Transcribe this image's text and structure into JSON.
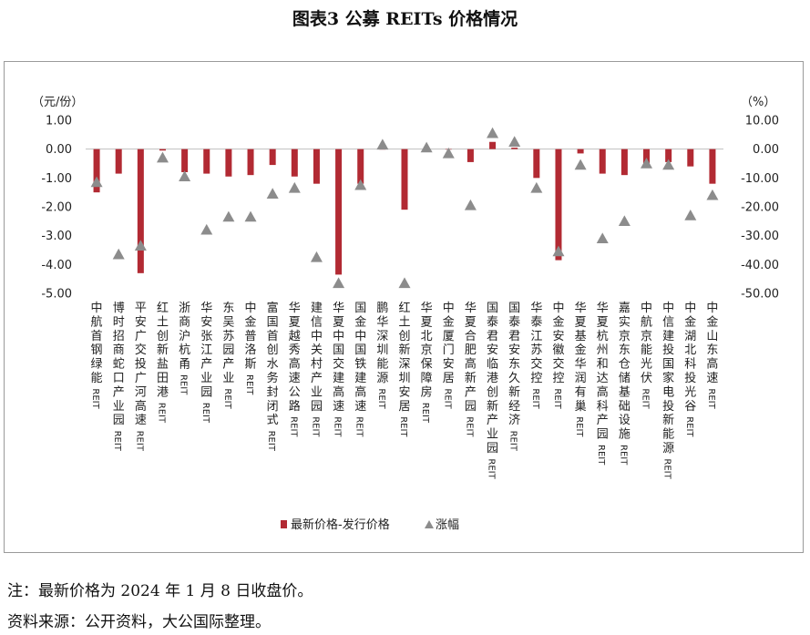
{
  "title": "图表3 公募 REITs 价格情况",
  "chart_data": {
    "type": "bar",
    "title": "图表3 公募 REITs 价格情况",
    "left_unit": "（元/份）",
    "right_unit": "（%）",
    "left_ylim": [
      -5,
      1
    ],
    "right_ylim": [
      -50,
      10
    ],
    "left_ticks": [
      "1.00",
      "0.00",
      "-1.00",
      "-2.00",
      "-3.00",
      "-4.00",
      "-5.00"
    ],
    "right_ticks": [
      "10.00",
      "0.00",
      "-10.00",
      "-20.00",
      "-30.00",
      "-40.00",
      "-50.00"
    ],
    "grid": false,
    "legend_position": "bottom-center",
    "categories": [
      "中航首钢绿能REIT",
      "博时招商蛇口产业园REIT",
      "平安广交投广河高速REIT",
      "红土创新盐田港REIT",
      "浙商沪杭甬REIT",
      "华安张江产业园REIT",
      "东吴苏园产业REIT",
      "中金普洛斯REIT",
      "富国首创水务封闭式REIT",
      "华夏越秀高速公路REIT",
      "建信中关村产业园REIT",
      "华夏中国交建高速REIT",
      "国金中国铁建高速REIT",
      "鹏华深圳能源REIT",
      "红土创新深圳安居REIT",
      "华夏北京保障房REIT",
      "中金厦门安居REIT",
      "华夏合肥高新产园REIT",
      "国泰君安临港创新产业园REIT",
      "国泰君安东久新经济REIT",
      "华泰江苏交控REIT",
      "中金安徽交控REIT",
      "华夏基金华润有巢REIT",
      "华夏杭州和达高科产园REIT",
      "嘉实京东仓储基础设施REIT",
      "中航京能光伏REIT",
      "中信建投国家电投新能源REIT",
      "中金湖北科投光谷REIT",
      "中金山东高速REIT"
    ],
    "series": [
      {
        "name": "最新价格-发行价格",
        "type": "bar",
        "axis": "left",
        "color": "#b22a33",
        "values": [
          -1.5,
          -0.85,
          -4.3,
          -0.05,
          -0.8,
          -0.85,
          -0.95,
          -0.9,
          -0.55,
          -0.95,
          -1.2,
          -4.35,
          -1.2,
          0.0,
          -2.1,
          0.0,
          0.0,
          -0.45,
          0.25,
          0.05,
          -1.0,
          -3.85,
          -0.15,
          -0.85,
          -0.9,
          -0.5,
          -0.45,
          -0.6,
          -1.2
        ]
      },
      {
        "name": "涨幅",
        "type": "scatter",
        "axis": "right",
        "marker": "triangle",
        "color": "#8c8c8c",
        "values": [
          -11.5,
          -36.5,
          -33.5,
          -3,
          -9.5,
          -28,
          -23.5,
          -23.5,
          -15.5,
          -13.5,
          -37.5,
          -46.5,
          -12.5,
          1.5,
          -46.5,
          0.5,
          -1.5,
          -19.5,
          5.5,
          2.5,
          -13.5,
          -35.5,
          -5.5,
          -31,
          -25,
          -5,
          -5.5,
          -23,
          -16
        ]
      }
    ]
  },
  "notes": {
    "note1": "注：最新价格为 2024 年 1 月 8 日收盘价。",
    "note2": "资料来源：公开资料，大公国际整理。"
  }
}
